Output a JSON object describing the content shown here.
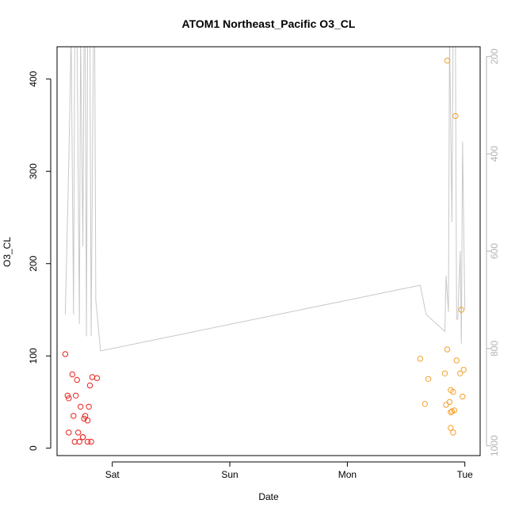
{
  "chart_data": {
    "type": "scatter",
    "title": "ATOM1 Northeast_Pacific O3_CL",
    "xlabel": "Date",
    "ylabel": "O3_CL",
    "x_unit": "days",
    "x_ticks": [
      {
        "label": "Sat",
        "value": 1.0
      },
      {
        "label": "Sun",
        "value": 2.0
      },
      {
        "label": "Mon",
        "value": 3.0
      },
      {
        "label": "Tue",
        "value": 4.0
      }
    ],
    "xlim": [
      0.53,
      4.13
    ],
    "ylim": [
      -8,
      435
    ],
    "y_ticks": [
      0,
      100,
      200,
      300,
      400
    ],
    "y2": {
      "label": "",
      "reversed": true,
      "lim": [
        1020,
        180
      ],
      "ticks": [
        200,
        400,
        600,
        800,
        1000
      ]
    },
    "grid": false,
    "legend": "none",
    "colors": {
      "series_1": "#e8231f",
      "series_2": "#f5a02a",
      "line": "#c8c8c8",
      "axis": "#000000",
      "axis_right": "#b3b3b3"
    },
    "series": [
      {
        "color": "#e8231f",
        "points": [
          {
            "x": 0.6,
            "y": 102
          },
          {
            "x": 0.62,
            "y": 57
          },
          {
            "x": 0.63,
            "y": 54
          },
          {
            "x": 0.63,
            "y": 17
          },
          {
            "x": 0.66,
            "y": 80
          },
          {
            "x": 0.67,
            "y": 35
          },
          {
            "x": 0.68,
            "y": 7
          },
          {
            "x": 0.69,
            "y": 57
          },
          {
            "x": 0.7,
            "y": 74
          },
          {
            "x": 0.71,
            "y": 17
          },
          {
            "x": 0.72,
            "y": 7
          },
          {
            "x": 0.73,
            "y": 45
          },
          {
            "x": 0.75,
            "y": 12
          },
          {
            "x": 0.75,
            "y": 12
          },
          {
            "x": 0.76,
            "y": 32
          },
          {
            "x": 0.77,
            "y": 35
          },
          {
            "x": 0.79,
            "y": 30
          },
          {
            "x": 0.79,
            "y": 7
          },
          {
            "x": 0.8,
            "y": 45
          },
          {
            "x": 0.81,
            "y": 68
          },
          {
            "x": 0.82,
            "y": 7
          },
          {
            "x": 0.83,
            "y": 77
          },
          {
            "x": 0.87,
            "y": 76
          }
        ]
      },
      {
        "color": "#f5a02a",
        "points": [
          {
            "x": 3.62,
            "y": 97
          },
          {
            "x": 3.66,
            "y": 48
          },
          {
            "x": 3.69,
            "y": 75
          },
          {
            "x": 3.83,
            "y": 81
          },
          {
            "x": 3.84,
            "y": 47
          },
          {
            "x": 3.85,
            "y": 107
          },
          {
            "x": 3.85,
            "y": 420
          },
          {
            "x": 3.87,
            "y": 50
          },
          {
            "x": 3.88,
            "y": 63
          },
          {
            "x": 3.88,
            "y": 22
          },
          {
            "x": 3.88,
            "y": 39
          },
          {
            "x": 3.89,
            "y": 40
          },
          {
            "x": 3.9,
            "y": 17
          },
          {
            "x": 3.9,
            "y": 61
          },
          {
            "x": 3.91,
            "y": 41
          },
          {
            "x": 3.92,
            "y": 360
          },
          {
            "x": 3.93,
            "y": 95
          },
          {
            "x": 3.96,
            "y": 81
          },
          {
            "x": 3.97,
            "y": 150
          },
          {
            "x": 3.98,
            "y": 56
          },
          {
            "x": 3.99,
            "y": 85
          }
        ]
      }
    ],
    "line_y2": [
      {
        "x": 0.6,
        "y": 730
      },
      {
        "x": 0.63,
        "y": 420
      },
      {
        "x": 0.65,
        "y": 150
      },
      {
        "x": 0.67,
        "y": 730
      },
      {
        "x": 0.68,
        "y": 170
      },
      {
        "x": 0.7,
        "y": 150
      },
      {
        "x": 0.72,
        "y": 750
      },
      {
        "x": 0.73,
        "y": 150
      },
      {
        "x": 0.75,
        "y": 590
      },
      {
        "x": 0.76,
        "y": 150
      },
      {
        "x": 0.77,
        "y": 150
      },
      {
        "x": 0.78,
        "y": 775
      },
      {
        "x": 0.79,
        "y": 150
      },
      {
        "x": 0.81,
        "y": 150
      },
      {
        "x": 0.82,
        "y": 775
      },
      {
        "x": 0.84,
        "y": 150
      },
      {
        "x": 0.85,
        "y": 150
      },
      {
        "x": 0.86,
        "y": 700
      },
      {
        "x": 0.9,
        "y": 805
      },
      {
        "x": 3.62,
        "y": 670
      },
      {
        "x": 3.67,
        "y": 730
      },
      {
        "x": 3.83,
        "y": 765
      },
      {
        "x": 3.84,
        "y": 650
      },
      {
        "x": 3.86,
        "y": 725
      },
      {
        "x": 3.87,
        "y": 150
      },
      {
        "x": 3.89,
        "y": 540
      },
      {
        "x": 3.9,
        "y": 150
      },
      {
        "x": 3.92,
        "y": 150
      },
      {
        "x": 3.93,
        "y": 740
      },
      {
        "x": 3.94,
        "y": 740
      },
      {
        "x": 3.96,
        "y": 600
      },
      {
        "x": 3.97,
        "y": 790
      },
      {
        "x": 3.98,
        "y": 375
      },
      {
        "x": 4.0,
        "y": 720
      }
    ]
  }
}
